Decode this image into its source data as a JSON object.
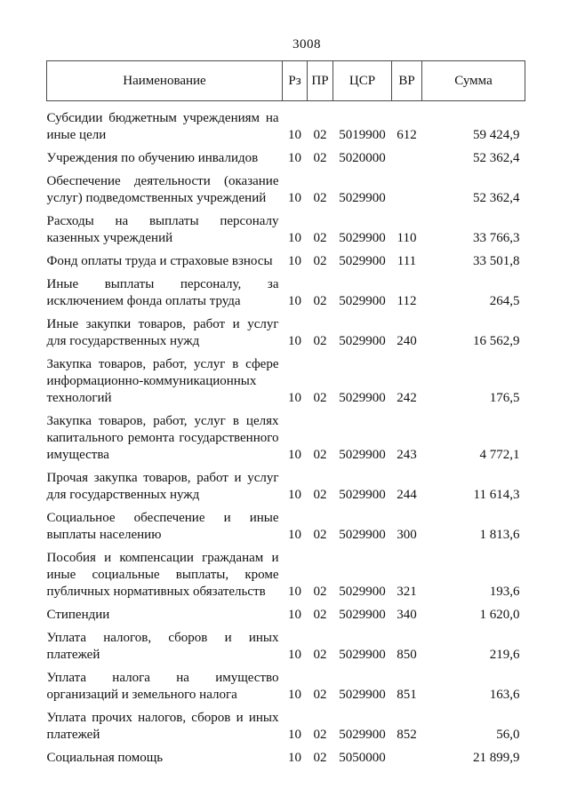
{
  "page": {
    "number": "3008"
  },
  "colors": {
    "text": "#111111",
    "table_border": "#4a4a4a",
    "page_background": "#ffffff"
  },
  "table": {
    "headers": {
      "name": "Наименование",
      "rz": "Рз",
      "pr": "ПР",
      "csr": "ЦСР",
      "vr": "ВР",
      "sum": "Сумма"
    },
    "rows": [
      {
        "name": "Субсидии бюджетным учреждениям на иные цели",
        "rz": "10",
        "pr": "02",
        "csr": "5019900",
        "vr": "612",
        "sum": "59 424,9"
      },
      {
        "name": "Учреждения по обучению инвалидов",
        "rz": "10",
        "pr": "02",
        "csr": "5020000",
        "vr": "",
        "sum": "52 362,4"
      },
      {
        "name": "Обеспечение деятельности (оказание услуг) подведомственных учреждений",
        "rz": "10",
        "pr": "02",
        "csr": "5029900",
        "vr": "",
        "sum": "52 362,4"
      },
      {
        "name": "Расходы на выплаты персоналу казенных учреждений",
        "rz": "10",
        "pr": "02",
        "csr": "5029900",
        "vr": "110",
        "sum": "33 766,3"
      },
      {
        "name": "Фонд оплаты труда и страховые взносы",
        "rz": "10",
        "pr": "02",
        "csr": "5029900",
        "vr": "111",
        "sum": "33 501,8"
      },
      {
        "name": "Иные выплаты персоналу, за исключением фонда оплаты труда",
        "rz": "10",
        "pr": "02",
        "csr": "5029900",
        "vr": "112",
        "sum": "264,5"
      },
      {
        "name": "Иные закупки товаров, работ и услуг для государственных нужд",
        "rz": "10",
        "pr": "02",
        "csr": "5029900",
        "vr": "240",
        "sum": "16 562,9"
      },
      {
        "name": "Закупка товаров, работ, услуг в сфере информационно-коммуникационных технологий",
        "rz": "10",
        "pr": "02",
        "csr": "5029900",
        "vr": "242",
        "sum": "176,5"
      },
      {
        "name": "Закупка товаров, работ, услуг в целях капитального ремонта государственного имущества",
        "rz": "10",
        "pr": "02",
        "csr": "5029900",
        "vr": "243",
        "sum": "4 772,1"
      },
      {
        "name": "Прочая закупка товаров, работ и услуг для государственных нужд",
        "rz": "10",
        "pr": "02",
        "csr": "5029900",
        "vr": "244",
        "sum": "11 614,3"
      },
      {
        "name": "Социальное обеспечение и иные выплаты населению",
        "rz": "10",
        "pr": "02",
        "csr": "5029900",
        "vr": "300",
        "sum": "1 813,6"
      },
      {
        "name": "Пособия и компенсации гражданам и иные социальные выплаты, кроме публичных нормативных обязательств",
        "rz": "10",
        "pr": "02",
        "csr": "5029900",
        "vr": "321",
        "sum": "193,6"
      },
      {
        "name": "Стипендии",
        "rz": "10",
        "pr": "02",
        "csr": "5029900",
        "vr": "340",
        "sum": "1 620,0"
      },
      {
        "name": "Уплата налогов, сборов и иных платежей",
        "rz": "10",
        "pr": "02",
        "csr": "5029900",
        "vr": "850",
        "sum": "219,6"
      },
      {
        "name": "Уплата налога на имущество организаций и земельного налога",
        "rz": "10",
        "pr": "02",
        "csr": "5029900",
        "vr": "851",
        "sum": "163,6"
      },
      {
        "name": "Уплата прочих налогов, сборов и иных платежей",
        "rz": "10",
        "pr": "02",
        "csr": "5029900",
        "vr": "852",
        "sum": "56,0"
      },
      {
        "name": "Социальная помощь",
        "rz": "10",
        "pr": "02",
        "csr": "5050000",
        "vr": "",
        "sum": "21 899,9"
      }
    ]
  }
}
